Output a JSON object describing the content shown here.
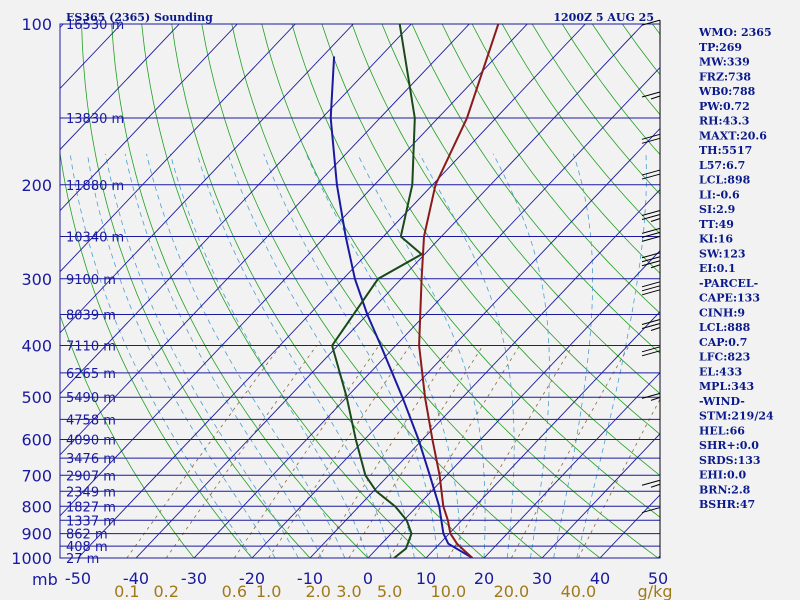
{
  "header": {
    "station": "ES365 (2365) Sounding",
    "time": "1200Z  5 AUG 25"
  },
  "indices": [
    "WMO: 2365",
    "TP:269",
    "MW:339",
    "FRZ:738",
    "WB0:788",
    "PW:0.72",
    "RH:43.3",
    "MAXT:20.6",
    "TH:5517",
    "L57:6.7",
    "LCL:898",
    "LI:-0.6",
    "SI:2.9",
    "TT:49",
    "KI:16",
    "SW:123",
    "EI:0.1",
    "-PARCEL-",
    "CAPE:133",
    "CINH:9",
    "LCL:888",
    "CAP:0.7",
    "LFC:823",
    "EL:433",
    "MPL:343",
    "-WIND-",
    "STM:219/24",
    "HEL:66",
    "SHR+:0.0",
    "SRDS:133",
    "EHI:0.0",
    "BRN:2.8",
    "BSHR:47"
  ],
  "colors": {
    "background": "#f2f2f2",
    "isobar": "#1a1aa0",
    "isotherm": "#1a1aa0",
    "dry_adiabat": "#22a022",
    "moist_adiabat": "#4aa0d0",
    "mixing_ratio": "#8a6a3a",
    "temperature": "#8b1a1a",
    "dewpoint": "#1a4a1a",
    "parcel": "#1a1aa0",
    "wind": "#000000"
  },
  "chart_data": {
    "type": "skew-t",
    "pressure_labels": [
      "100",
      "200",
      "300",
      "400",
      "500",
      "600",
      "700",
      "800",
      "900",
      "1000"
    ],
    "pressure_axis_unit": "mb",
    "temperature_labels": [
      "-50",
      "-40",
      "-30",
      "-20",
      "-10",
      "0",
      "10",
      "20",
      "30",
      "40",
      "50"
    ],
    "mixing_ratio_labels": [
      "0.1",
      "0.2",
      "0.6",
      "1.0",
      "2.0",
      "3.0",
      "5.0",
      "10.0",
      "20.0",
      "40.0"
    ],
    "mixing_ratio_unit": "g/kg",
    "height_labels": [
      {
        "p": 100,
        "label": "16530 m"
      },
      {
        "p": 150,
        "label": "13830 m"
      },
      {
        "p": 200,
        "label": "11880 m"
      },
      {
        "p": 250,
        "label": "10340 m"
      },
      {
        "p": 300,
        "label": "9100 m"
      },
      {
        "p": 350,
        "label": "8039 m"
      },
      {
        "p": 400,
        "label": "7110 m"
      },
      {
        "p": 450,
        "label": "6265 m"
      },
      {
        "p": 500,
        "label": "5490 m"
      },
      {
        "p": 550,
        "label": "4758 m"
      },
      {
        "p": 600,
        "label": "4090 m"
      },
      {
        "p": 650,
        "label": "3476 m"
      },
      {
        "p": 700,
        "label": "2907 m"
      },
      {
        "p": 750,
        "label": "2349 m"
      },
      {
        "p": 800,
        "label": "1827 m"
      },
      {
        "p": 850,
        "label": "1337 m"
      },
      {
        "p": 900,
        "label": "862 m"
      },
      {
        "p": 950,
        "label": "408 m"
      },
      {
        "p": 1000,
        "label": "27 m"
      }
    ],
    "temperature_profile": [
      {
        "p": 1000,
        "t": 18.0
      },
      {
        "p": 970,
        "t": 15.5
      },
      {
        "p": 940,
        "t": 13.0
      },
      {
        "p": 900,
        "t": 10.2
      },
      {
        "p": 850,
        "t": 7.6
      },
      {
        "p": 800,
        "t": 4.5
      },
      {
        "p": 700,
        "t": -1.2
      },
      {
        "p": 600,
        "t": -8.3
      },
      {
        "p": 500,
        "t": -16.5
      },
      {
        "p": 400,
        "t": -26.0
      },
      {
        "p": 300,
        "t": -36.5
      },
      {
        "p": 250,
        "t": -43.0
      },
      {
        "p": 200,
        "t": -49.5
      },
      {
        "p": 150,
        "t": -55.0
      },
      {
        "p": 100,
        "t": -65.0
      }
    ],
    "dewpoint_profile": [
      {
        "p": 1000,
        "t": 4.5
      },
      {
        "p": 960,
        "t": 5.0
      },
      {
        "p": 900,
        "t": 3.5
      },
      {
        "p": 850,
        "t": 0.5
      },
      {
        "p": 800,
        "t": -3.8
      },
      {
        "p": 750,
        "t": -9.5
      },
      {
        "p": 700,
        "t": -14.0
      },
      {
        "p": 600,
        "t": -21.5
      },
      {
        "p": 500,
        "t": -30.0
      },
      {
        "p": 400,
        "t": -41.0
      },
      {
        "p": 300,
        "t": -44.0
      },
      {
        "p": 270,
        "t": -40.5
      },
      {
        "p": 250,
        "t": -47.0
      },
      {
        "p": 200,
        "t": -53.5
      },
      {
        "p": 150,
        "t": -64.0
      },
      {
        "p": 100,
        "t": -82.0
      }
    ],
    "parcel_profile": [
      {
        "p": 1000,
        "t": 18.0
      },
      {
        "p": 940,
        "t": 11.5
      },
      {
        "p": 900,
        "t": 9.0
      },
      {
        "p": 800,
        "t": 3.8
      },
      {
        "p": 700,
        "t": -2.9
      },
      {
        "p": 600,
        "t": -10.7
      },
      {
        "p": 500,
        "t": -20.4
      },
      {
        "p": 400,
        "t": -32.6
      },
      {
        "p": 350,
        "t": -40.0
      },
      {
        "p": 300,
        "t": -48.0
      },
      {
        "p": 250,
        "t": -56.5
      },
      {
        "p": 200,
        "t": -66.5
      },
      {
        "p": 150,
        "t": -78.5
      },
      {
        "p": 115,
        "t": -88.0
      }
    ],
    "wind_barbs": [
      {
        "p": 110,
        "speed": 10
      },
      {
        "p": 150,
        "speed": 15
      },
      {
        "p": 180,
        "speed": 20
      },
      {
        "p": 210,
        "speed": 20
      },
      {
        "p": 250,
        "speed": 25
      },
      {
        "p": 270,
        "speed": 30
      },
      {
        "p": 300,
        "speed": 35
      },
      {
        "p": 340,
        "speed": 30
      },
      {
        "p": 400,
        "speed": 25
      },
      {
        "p": 450,
        "speed": 20
      },
      {
        "p": 550,
        "speed": 15
      },
      {
        "p": 800,
        "speed": 15
      },
      {
        "p": 900,
        "speed": 10
      }
    ]
  }
}
